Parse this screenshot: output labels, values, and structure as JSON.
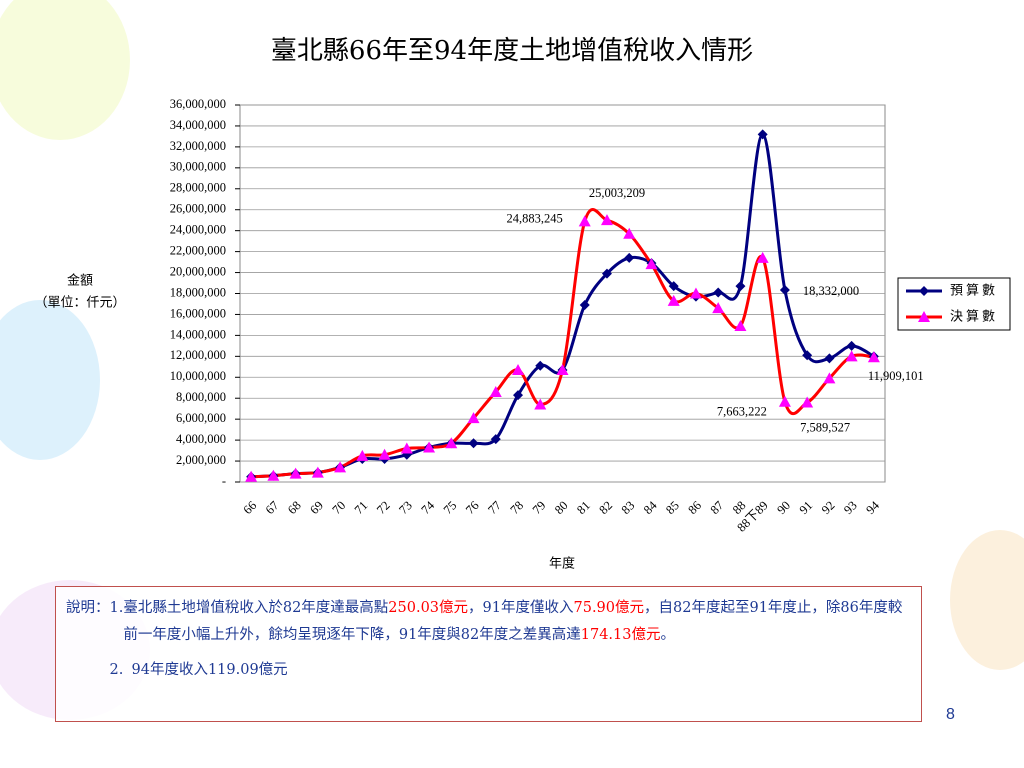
{
  "title": "臺北縣66年至94年度土地增值稅收入情形",
  "chart_data": {
    "type": "line",
    "y_label": [
      "金額",
      "（單位：仟元）"
    ],
    "x_label": "年度",
    "categories": [
      "66",
      "67",
      "68",
      "69",
      "70",
      "71",
      "72",
      "73",
      "74",
      "75",
      "76",
      "77",
      "78",
      "79",
      "80",
      "81",
      "82",
      "83",
      "84",
      "85",
      "86",
      "87",
      "88",
      "88下89",
      "90",
      "91",
      "92",
      "93",
      "94"
    ],
    "series": [
      {
        "name": "預算數",
        "color": "#000080",
        "marker": "diamond",
        "marker_color": "#000080",
        "values": [
          500000,
          600000,
          800000,
          900000,
          1400000,
          2200000,
          2200000,
          2600000,
          3300000,
          3700000,
          3700000,
          4100000,
          8300000,
          11100000,
          10700000,
          16900000,
          19900000,
          21400000,
          20900000,
          18700000,
          17700000,
          18100000,
          18700000,
          33200000,
          18332000,
          12100000,
          11800000,
          13000000,
          12000000
        ],
        "value_labels": [
          null,
          null,
          null,
          null,
          null,
          null,
          null,
          null,
          null,
          null,
          null,
          null,
          null,
          null,
          null,
          null,
          null,
          null,
          null,
          null,
          null,
          null,
          null,
          null,
          "18,332,000",
          null,
          null,
          null,
          null
        ]
      },
      {
        "name": "決算數",
        "color": "#ff0000",
        "marker": "triangle",
        "marker_color": "#ff00ff",
        "values": [
          500000,
          600000,
          800000,
          900000,
          1400000,
          2500000,
          2600000,
          3200000,
          3300000,
          3700000,
          6100000,
          8600000,
          10700000,
          7400000,
          10700000,
          24883245,
          25003209,
          23700000,
          20800000,
          17300000,
          18000000,
          16600000,
          14900000,
          21400000,
          7663222,
          7589527,
          9900000,
          12000000,
          11909101
        ],
        "value_labels": [
          null,
          null,
          null,
          null,
          null,
          null,
          null,
          null,
          null,
          null,
          null,
          null,
          null,
          null,
          null,
          "24,883,245",
          "25,003,209",
          null,
          null,
          null,
          null,
          null,
          null,
          null,
          "7,663,222",
          "7,589,527",
          null,
          null,
          "11,909,101"
        ]
      }
    ],
    "ylim": [
      0,
      36000000
    ],
    "yticks": [
      {
        "value": 0,
        "label": "-"
      },
      {
        "value": 2000000,
        "label": "2,000,000"
      },
      {
        "value": 4000000,
        "label": "4,000,000"
      },
      {
        "value": 6000000,
        "label": "6,000,000"
      },
      {
        "value": 8000000,
        "label": "8,000,000"
      },
      {
        "value": 10000000,
        "label": "10,000,000"
      },
      {
        "value": 12000000,
        "label": "12,000,000"
      },
      {
        "value": 14000000,
        "label": "14,000,000"
      },
      {
        "value": 16000000,
        "label": "16,000,000"
      },
      {
        "value": 18000000,
        "label": "18,000,000"
      },
      {
        "value": 20000000,
        "label": "20,000,000"
      },
      {
        "value": 22000000,
        "label": "22,000,000"
      },
      {
        "value": 24000000,
        "label": "24,000,000"
      },
      {
        "value": 26000000,
        "label": "26,000,000"
      },
      {
        "value": 28000000,
        "label": "28,000,000"
      },
      {
        "value": 30000000,
        "label": "30,000,000"
      },
      {
        "value": 32000000,
        "label": "32,000,000"
      },
      {
        "value": 34000000,
        "label": "34,000,000"
      },
      {
        "value": 36000000,
        "label": "36,000,000"
      }
    ],
    "grid": true,
    "legend": "right",
    "smooth": true
  },
  "note": {
    "label": "說明：",
    "items": [
      {
        "number": "1.",
        "segments": [
          {
            "text": "臺北縣土地增值稅收入於82年度達最高點"
          },
          {
            "text": "250.03億元",
            "emphasis": true
          },
          {
            "text": "，91年度僅收入"
          },
          {
            "text": "75.90億元",
            "emphasis": true
          },
          {
            "text": "，自82年度起至91年度止，除86年度較前一年度小幅上升外，餘均呈現逐年下降，91年度與82年度之差異高達"
          },
          {
            "text": "174.13億元",
            "emphasis": true
          },
          {
            "text": "。"
          }
        ]
      },
      {
        "number": "2.",
        "segments": [
          {
            "text": "94年度收入119.09億元"
          }
        ]
      }
    ]
  },
  "page_number": "8"
}
